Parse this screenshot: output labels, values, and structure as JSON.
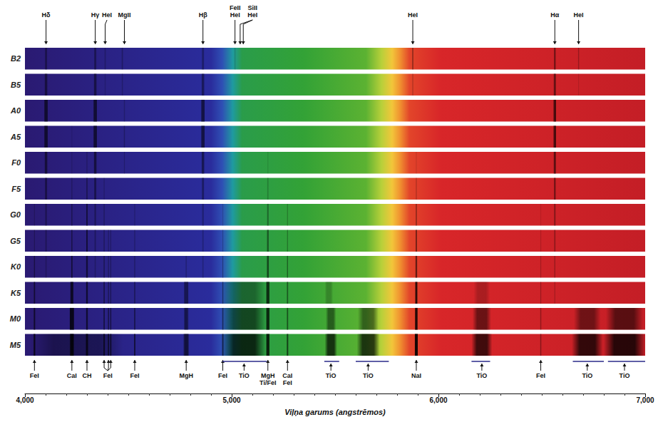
{
  "chart_data": {
    "type": "spectrum",
    "x_label": "Viļņa garums (angstrēmos)",
    "xlim": [
      4000,
      7000
    ],
    "xticks": [
      4000,
      5000,
      6000,
      7000
    ],
    "categories": [
      "B2",
      "B5",
      "A0",
      "A5",
      "F0",
      "F5",
      "G0",
      "G5",
      "K0",
      "K5",
      "M0",
      "M5"
    ],
    "top_labels": [
      {
        "label": "Hδ",
        "x": 4102
      },
      {
        "label": "Hγ",
        "x": 4340
      },
      {
        "label": "HeI",
        "x": 4388
      },
      {
        "label": "MgII",
        "x": 4481
      },
      {
        "label": "Hβ",
        "x": 4861
      },
      {
        "label": "FeII HeI",
        "x": 5016
      },
      {
        "label": "SiII HeI",
        "x": [
          5041,
          5056
        ]
      },
      {
        "label": "HeI",
        "x": 5876
      },
      {
        "label": "Hα",
        "x": 6563
      },
      {
        "label": "HeI",
        "x": 6678
      }
    ],
    "bottom_labels": [
      {
        "label": "FeI",
        "x": 4046
      },
      {
        "label": "CaI",
        "x": 4227
      },
      {
        "label": "CH",
        "x": 4300
      },
      {
        "label": "FeI",
        "x": [
          4383,
          4404,
          4415
        ]
      },
      {
        "label": "FeI",
        "x": 4531
      },
      {
        "label": "MgH",
        "x": 4780
      },
      {
        "label": "FeI",
        "x": 4957
      },
      {
        "label": "TiO",
        "x": 5060,
        "band": [
          4955,
          5170
        ]
      },
      {
        "label": "MgH Ti/FeI",
        "x": 5175
      },
      {
        "label": "CaI FeI",
        "x": 5270
      },
      {
        "label": "TiO",
        "x": 5480,
        "band": [
          5448,
          5520
        ]
      },
      {
        "label": "TiO",
        "x": 5660,
        "band": [
          5600,
          5760
        ]
      },
      {
        "label": "NaI",
        "x": 5893
      },
      {
        "label": "TiO",
        "x": 6210,
        "band": [
          6160,
          6250
        ]
      },
      {
        "label": "FeI",
        "x": 6495
      },
      {
        "label": "TiO",
        "x": 6720,
        "band": [
          6650,
          6800
        ]
      },
      {
        "label": "TiO",
        "x": 6900,
        "band": [
          6820,
          7000
        ]
      }
    ],
    "absorption": {
      "B2": [
        [
          4102,
          10,
          0.35
        ],
        [
          4340,
          10,
          0.35
        ],
        [
          4388,
          6,
          0.2
        ],
        [
          4471,
          6,
          0.25
        ],
        [
          4861,
          10,
          0.3
        ],
        [
          5016,
          5,
          0.15
        ],
        [
          5876,
          6,
          0.35
        ],
        [
          6563,
          8,
          0.45
        ],
        [
          6678,
          5,
          0.25
        ]
      ],
      "B5": [
        [
          4102,
          12,
          0.45
        ],
        [
          4340,
          12,
          0.45
        ],
        [
          4388,
          5,
          0.15
        ],
        [
          4471,
          5,
          0.2
        ],
        [
          4861,
          12,
          0.4
        ],
        [
          5876,
          5,
          0.2
        ],
        [
          6563,
          10,
          0.5
        ],
        [
          6678,
          4,
          0.12
        ]
      ],
      "A0": [
        [
          4102,
          16,
          0.6
        ],
        [
          4340,
          16,
          0.6
        ],
        [
          4481,
          5,
          0.2
        ],
        [
          4861,
          16,
          0.55
        ],
        [
          6563,
          12,
          0.65
        ]
      ],
      "A5": [
        [
          4102,
          16,
          0.6
        ],
        [
          4227,
          4,
          0.1
        ],
        [
          4340,
          16,
          0.6
        ],
        [
          4481,
          5,
          0.25
        ],
        [
          4861,
          16,
          0.55
        ],
        [
          6563,
          12,
          0.65
        ]
      ],
      "F0": [
        [
          4102,
          12,
          0.5
        ],
        [
          4227,
          4,
          0.15
        ],
        [
          4300,
          5,
          0.2
        ],
        [
          4340,
          12,
          0.5
        ],
        [
          4481,
          4,
          0.2
        ],
        [
          4861,
          12,
          0.45
        ],
        [
          5175,
          5,
          0.1
        ],
        [
          5893,
          5,
          0.1
        ],
        [
          6563,
          10,
          0.55
        ]
      ],
      "F5": [
        [
          4102,
          10,
          0.4
        ],
        [
          4227,
          4,
          0.25
        ],
        [
          4300,
          6,
          0.35
        ],
        [
          4340,
          10,
          0.4
        ],
        [
          4383,
          4,
          0.2
        ],
        [
          4861,
          10,
          0.35
        ],
        [
          5175,
          6,
          0.2
        ],
        [
          5893,
          5,
          0.2
        ],
        [
          6563,
          8,
          0.45
        ]
      ],
      "G0": [
        [
          4046,
          4,
          0.2
        ],
        [
          4102,
          8,
          0.3
        ],
        [
          4227,
          5,
          0.35
        ],
        [
          4300,
          7,
          0.5
        ],
        [
          4340,
          8,
          0.3
        ],
        [
          4383,
          4,
          0.3
        ],
        [
          4531,
          4,
          0.2
        ],
        [
          4861,
          8,
          0.25
        ],
        [
          4957,
          4,
          0.15
        ],
        [
          5175,
          7,
          0.35
        ],
        [
          5270,
          4,
          0.25
        ],
        [
          5893,
          6,
          0.35
        ],
        [
          6495,
          3,
          0.1
        ],
        [
          6563,
          7,
          0.35
        ]
      ],
      "G5": [
        [
          4046,
          4,
          0.25
        ],
        [
          4102,
          7,
          0.25
        ],
        [
          4227,
          5,
          0.45
        ],
        [
          4300,
          7,
          0.55
        ],
        [
          4340,
          7,
          0.25
        ],
        [
          4383,
          4,
          0.35
        ],
        [
          4404,
          3,
          0.25
        ],
        [
          4415,
          3,
          0.25
        ],
        [
          4531,
          4,
          0.25
        ],
        [
          4861,
          7,
          0.2
        ],
        [
          4957,
          4,
          0.2
        ],
        [
          5175,
          8,
          0.45
        ],
        [
          5270,
          4,
          0.3
        ],
        [
          5893,
          7,
          0.45
        ],
        [
          6495,
          3,
          0.15
        ],
        [
          6563,
          6,
          0.3
        ]
      ],
      "K0": [
        [
          4046,
          5,
          0.4
        ],
        [
          4102,
          6,
          0.2
        ],
        [
          4227,
          6,
          0.55
        ],
        [
          4300,
          8,
          0.55
        ],
        [
          4340,
          6,
          0.2
        ],
        [
          4383,
          4,
          0.45
        ],
        [
          4404,
          3,
          0.3
        ],
        [
          4415,
          3,
          0.3
        ],
        [
          4531,
          4,
          0.3
        ],
        [
          4780,
          6,
          0.2
        ],
        [
          4861,
          6,
          0.2
        ],
        [
          4957,
          4,
          0.3
        ],
        [
          5175,
          9,
          0.55
        ],
        [
          5270,
          5,
          0.4
        ],
        [
          5893,
          8,
          0.55
        ],
        [
          6495,
          3,
          0.2
        ],
        [
          6563,
          5,
          0.25
        ]
      ],
      "K5": [
        [
          4046,
          6,
          0.55
        ],
        [
          4227,
          14,
          0.7
        ],
        [
          4300,
          8,
          0.6
        ],
        [
          4383,
          5,
          0.5
        ],
        [
          4404,
          4,
          0.4
        ],
        [
          4415,
          4,
          0.4
        ],
        [
          4531,
          5,
          0.4
        ],
        [
          4780,
          20,
          0.45
        ],
        [
          4957,
          5,
          0.4
        ],
        [
          5060,
          210,
          0.35
        ],
        [
          5175,
          15,
          0.7
        ],
        [
          5270,
          6,
          0.45
        ],
        [
          5470,
          40,
          0.2
        ],
        [
          5893,
          10,
          0.8
        ],
        [
          6210,
          80,
          0.2
        ],
        [
          6495,
          4,
          0.25
        ],
        [
          6563,
          4,
          0.2
        ]
      ],
      "M0": [
        [
          4046,
          7,
          0.6
        ],
        [
          4227,
          20,
          0.8
        ],
        [
          4300,
          8,
          0.6
        ],
        [
          4383,
          6,
          0.5
        ],
        [
          4404,
          5,
          0.5
        ],
        [
          4415,
          5,
          0.5
        ],
        [
          4531,
          6,
          0.45
        ],
        [
          4780,
          25,
          0.5
        ],
        [
          4957,
          6,
          0.45
        ],
        [
          5060,
          210,
          0.55
        ],
        [
          5175,
          15,
          0.75
        ],
        [
          5270,
          6,
          0.5
        ],
        [
          5480,
          50,
          0.45
        ],
        [
          5660,
          100,
          0.45
        ],
        [
          5893,
          12,
          0.85
        ],
        [
          6210,
          90,
          0.5
        ],
        [
          6495,
          5,
          0.3
        ],
        [
          6720,
          130,
          0.45
        ],
        [
          6900,
          180,
          0.55
        ]
      ],
      "M5": [
        [
          4250,
          450,
          0.35
        ],
        [
          4046,
          8,
          0.7
        ],
        [
          4227,
          24,
          0.85
        ],
        [
          4300,
          10,
          0.7
        ],
        [
          4383,
          7,
          0.6
        ],
        [
          4404,
          6,
          0.6
        ],
        [
          4415,
          6,
          0.6
        ],
        [
          4531,
          7,
          0.55
        ],
        [
          4780,
          30,
          0.6
        ],
        [
          4957,
          7,
          0.55
        ],
        [
          5060,
          210,
          0.75
        ],
        [
          5175,
          15,
          0.8
        ],
        [
          5270,
          7,
          0.6
        ],
        [
          5480,
          60,
          0.7
        ],
        [
          5660,
          110,
          0.7
        ],
        [
          5893,
          14,
          0.9
        ],
        [
          6210,
          100,
          0.7
        ],
        [
          6495,
          5,
          0.35
        ],
        [
          6720,
          150,
          0.75
        ],
        [
          6900,
          200,
          0.8
        ]
      ]
    }
  }
}
